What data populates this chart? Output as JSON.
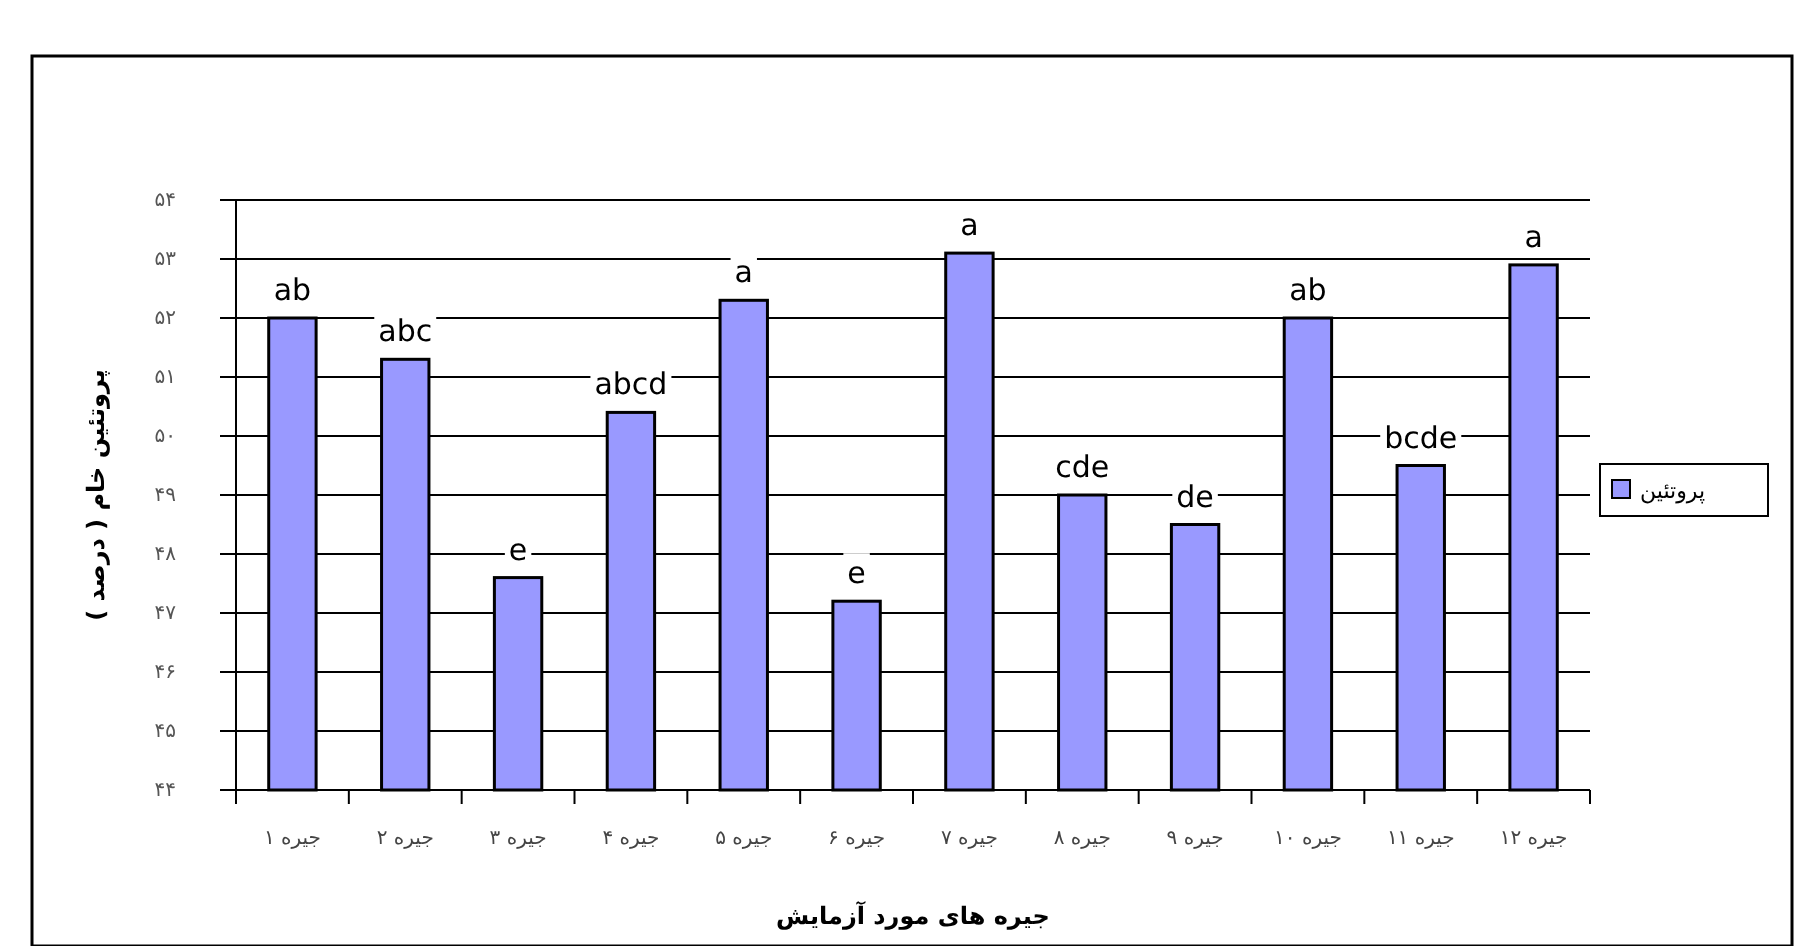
{
  "chart_data": {
    "type": "bar",
    "xlabel": "جیره های مورد آزمایش",
    "ylabel": "پروتئین خام ( درصد )",
    "categories": [
      "جیره ۱",
      "جیره ۲",
      "جیره ۳",
      "جیره ۴",
      "جیره ۵",
      "جیره ۶",
      "جیره ۷",
      "جیره ۸",
      "جیره ۹",
      "جیره ۱۰",
      "جیره ۱۱",
      "جیره ۱۲"
    ],
    "series": [
      {
        "name": "پروتئین",
        "color": "#9999ff",
        "values": [
          52.0,
          51.3,
          47.6,
          50.4,
          52.3,
          47.2,
          53.1,
          49.0,
          48.5,
          52.0,
          49.5,
          52.9
        ]
      }
    ],
    "ylim": [
      44,
      54
    ],
    "yticks": [
      {
        "value": 44,
        "label": "۴۴"
      },
      {
        "value": 45,
        "label": "۴۵"
      },
      {
        "value": 46,
        "label": "۴۶"
      },
      {
        "value": 47,
        "label": "۴۷"
      },
      {
        "value": 48,
        "label": "۴۸"
      },
      {
        "value": 49,
        "label": "۴۹"
      },
      {
        "value": 50,
        "label": "۵۰"
      },
      {
        "value": 51,
        "label": "۵۱"
      },
      {
        "value": 52,
        "label": "۵۲"
      },
      {
        "value": 53,
        "label": "۵۳"
      },
      {
        "value": 54,
        "label": "۵۴"
      }
    ],
    "grid": "y",
    "legend": "right",
    "annotations": [
      {
        "text": "ab",
        "x": "جیره ۱",
        "y": 52.0
      },
      {
        "text": "abc",
        "x": "جیره ۲",
        "y": 51.3
      },
      {
        "text": "e",
        "x": "جیره ۳",
        "y": 47.6
      },
      {
        "text": "abcd",
        "x": "جیره ۴",
        "y": 50.4
      },
      {
        "text": "a",
        "x": "جیره ۵",
        "y": 52.3
      },
      {
        "text": "e",
        "x": "جیره ۶",
        "y": 47.2
      },
      {
        "text": "a",
        "x": "جیره ۷",
        "y": 53.1
      },
      {
        "text": "cde",
        "x": "جیره ۸",
        "y": 49.0
      },
      {
        "text": "de",
        "x": "جیره ۹",
        "y": 48.5
      },
      {
        "text": "ab",
        "x": "جیره ۱۰",
        "y": 52.0
      },
      {
        "text": "bcde",
        "x": "جیره ۱۱",
        "y": 49.5
      },
      {
        "text": "a",
        "x": "جیره ۱۲",
        "y": 52.9
      }
    ]
  }
}
